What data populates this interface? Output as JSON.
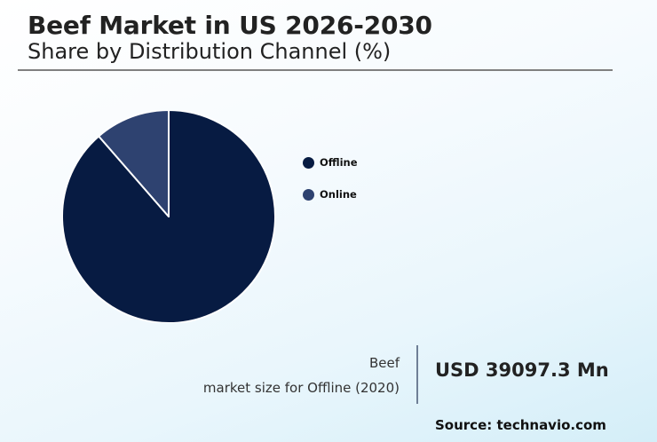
{
  "header": {
    "title": "Beef Market in US 2026-2030",
    "subtitle": "Share by Distribution Channel (%)"
  },
  "legend": {
    "items": [
      {
        "label": "Offline",
        "color": "#071b42"
      },
      {
        "label": "Online",
        "color": "#2e4270"
      }
    ]
  },
  "stat": {
    "label_line1": "Beef",
    "label_line2": "market size for Offline (2020)",
    "value": "USD 39097.3 Mn"
  },
  "source": "Source: technavio.com",
  "chart_data": {
    "type": "pie",
    "title": "Beef Market in US 2026-2030",
    "subtitle": "Share by Distribution Channel (%)",
    "categories": [
      "Offline",
      "Online"
    ],
    "values": [
      88.6,
      11.4
    ],
    "colors": [
      "#071b42",
      "#2e4270"
    ],
    "start_angle_deg": 90,
    "direction": "clockwise from 12 o'clock for Offline; Online occupies the segment just counterclockwise of 12 o'clock",
    "legend_position": "right",
    "data_labels": false
  }
}
